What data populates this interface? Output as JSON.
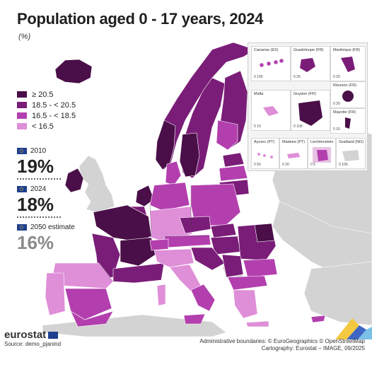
{
  "title": "Population aged 0 - 17 years, 2024",
  "subtitle": "(%)",
  "colors": {
    "class_1": "#4a0f48",
    "class_2": "#7a1d78",
    "class_3": "#b33fae",
    "class_4": "#df8ed8",
    "no_data": "#d3d3d3",
    "sea": "#ffffff"
  },
  "legend": {
    "items": [
      {
        "label": "≥ 20.5",
        "color": "#4a0f48"
      },
      {
        "label": "18.5 - < 20.5",
        "color": "#7a1d78"
      },
      {
        "label": "16.5 - < 18.5",
        "color": "#b33fae"
      },
      {
        "label": "< 16.5",
        "color": "#df8ed8"
      }
    ]
  },
  "stats": [
    {
      "label": "2010",
      "value": "19%"
    },
    {
      "label": "2024",
      "value": "18%"
    },
    {
      "label": "2050 estimate",
      "value": "16%"
    }
  ],
  "insets": [
    {
      "name": "Canarias (ES)",
      "scale": "0  100"
    },
    {
      "name": "Guadeloupe (FR)",
      "scale": "0  25"
    },
    {
      "name": "Martinique (FR)",
      "scale": "0  20"
    },
    {
      "name": "Réunion (FR)",
      "scale": "0  20"
    },
    {
      "name": "Malta",
      "scale": "0  10"
    },
    {
      "name": "Guyane (FR)",
      "scale": "0  100"
    },
    {
      "name": "Mayotte (FR)",
      "scale": "0  15"
    },
    {
      "name": "Açores (PT)",
      "scale": "0  50"
    },
    {
      "name": "Madeira (PT)",
      "scale": "0  20"
    },
    {
      "name": "Liechtenstein",
      "scale": "0  5"
    },
    {
      "name": "Svalbard (NO)",
      "scale": "0  100"
    }
  ],
  "footer": {
    "logo": "eurostat",
    "source": "Source: demo_pjanind",
    "boundaries": "Administrative boundaries: © EuroGeographics © OpenStreetMap",
    "cartography": "Cartography: Eurostat – IMAGE, 09/2025"
  }
}
